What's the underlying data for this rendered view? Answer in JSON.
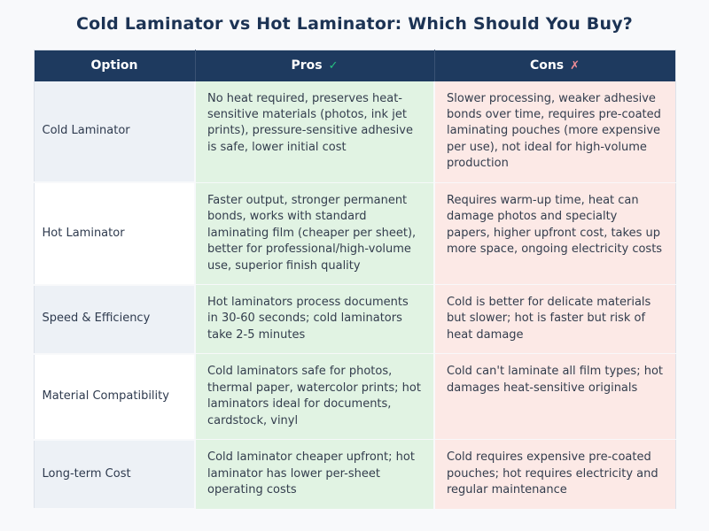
{
  "title": "Cold Laminator vs Hot Laminator: Which Should You Buy?",
  "table": {
    "headers": {
      "option": "Option",
      "pros": "Pros",
      "cons": "Cons"
    },
    "icons": {
      "pros_check": "✓",
      "cons_x": "✗"
    },
    "rows": [
      {
        "option": "Cold Laminator",
        "pros": "No heat required, preserves heat-sensitive materials (photos, ink jet prints), pressure-sensitive adhesive is safe, lower initial cost",
        "cons": "Slower processing, weaker adhesive bonds over time, requires pre-coated laminating pouches (more expensive per use), not ideal for high-volume production"
      },
      {
        "option": "Hot Laminator",
        "pros": "Faster output, stronger permanent bonds, works with standard laminating film (cheaper per sheet), better for professional/high-volume use, superior finish quality",
        "cons": "Requires warm-up time, heat can damage photos and specialty papers, higher upfront cost, takes up more space, ongoing electricity costs"
      },
      {
        "option": "Speed & Efficiency",
        "pros": "Hot laminators process documents in 30-60 seconds; cold laminators take 2-5 minutes",
        "cons": "Cold is better for delicate materials but slower; hot is faster but risk of heat damage"
      },
      {
        "option": "Material Compatibility",
        "pros": "Cold laminators safe for photos, thermal paper, watercolor prints; hot laminators ideal for documents, cardstock, vinyl",
        "cons": "Cold can't laminate all film types; hot damages heat-sensitive originals"
      },
      {
        "option": "Long-term Cost",
        "pros": "Cold laminator cheaper upfront; hot laminator has lower per-sheet operating costs",
        "cons": "Cold requires expensive pre-coated pouches; hot requires electricity and regular maintenance"
      }
    ]
  },
  "colors": {
    "header_bg": "#1e3a5f",
    "pros_cell_bg": "#e1f3e3",
    "cons_cell_bg": "#fce9e6",
    "option_alt_bg": "#edf1f6",
    "page_bg": "#f8f9fb",
    "title_color": "#1c3354",
    "check_green": "#27c281",
    "x_red": "#ef8c96"
  },
  "chart_data": {
    "type": "table",
    "title": "Cold Laminator vs Hot Laminator: Which Should You Buy?",
    "columns": [
      "Option",
      "Pros ✓",
      "Cons ✗"
    ],
    "rows": [
      [
        "Cold Laminator",
        "No heat required, preserves heat-sensitive materials (photos, ink jet prints), pressure-sensitive adhesive is safe, lower initial cost",
        "Slower processing, weaker adhesive bonds over time, requires pre-coated laminating pouches (more expensive per use), not ideal for high-volume production"
      ],
      [
        "Hot Laminator",
        "Faster output, stronger permanent bonds, works with standard laminating film (cheaper per sheet), better for professional/high-volume use, superior finish quality",
        "Requires warm-up time, heat can damage photos and specialty papers, higher upfront cost, takes up more space, ongoing electricity costs"
      ],
      [
        "Speed & Efficiency",
        "Hot laminators process documents in 30-60 seconds; cold laminators take 2-5 minutes",
        "Cold is better for delicate materials but slower; hot is faster but risk of heat damage"
      ],
      [
        "Material Compatibility",
        "Cold laminators safe for photos, thermal paper, watercolor prints; hot laminators ideal for documents, cardstock, vinyl",
        "Cold can't laminate all film types; hot damages heat-sensitive originals"
      ],
      [
        "Long-term Cost",
        "Cold laminator cheaper upfront; hot laminator has lower per-sheet operating costs",
        "Cold requires expensive pre-coated pouches; hot requires electricity and regular maintenance"
      ]
    ],
    "layout_hints": {
      "header_style": "dark navy band with white bold centered labels",
      "pros_column_tint": "light green",
      "cons_column_tint": "light pink",
      "option_column": "alternating light blue-gray and white rows"
    }
  }
}
